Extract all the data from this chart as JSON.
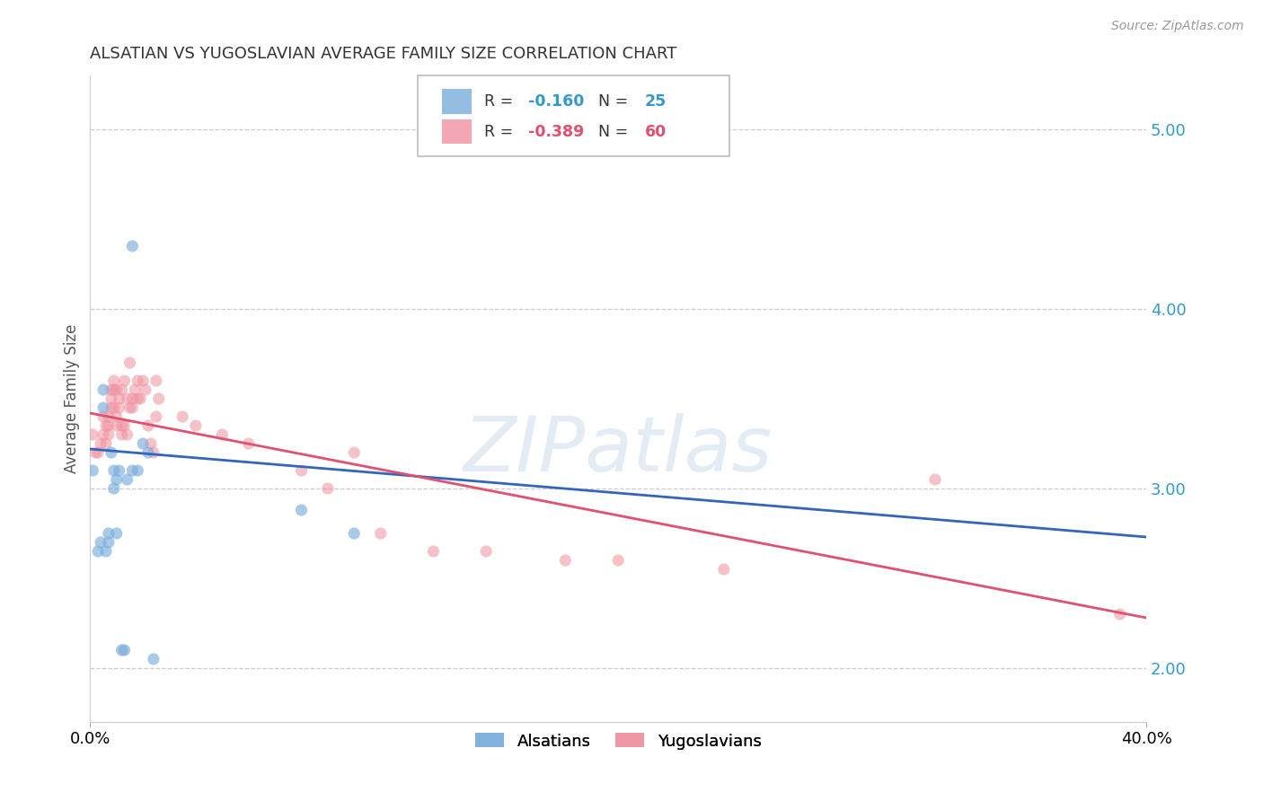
{
  "title": "ALSATIAN VS YUGOSLAVIAN AVERAGE FAMILY SIZE CORRELATION CHART",
  "source": "Source: ZipAtlas.com",
  "ylabel": "Average Family Size",
  "yticks_right": [
    2.0,
    3.0,
    4.0,
    5.0
  ],
  "watermark": "ZIPatlas",
  "alsatians_scatter": {
    "x": [
      0.001,
      0.003,
      0.004,
      0.005,
      0.005,
      0.006,
      0.007,
      0.007,
      0.008,
      0.009,
      0.009,
      0.01,
      0.01,
      0.011,
      0.012,
      0.013,
      0.014,
      0.016,
      0.016,
      0.018,
      0.02,
      0.022,
      0.024,
      0.08,
      0.1
    ],
    "y": [
      3.1,
      2.65,
      2.7,
      3.55,
      3.45,
      2.65,
      2.7,
      2.75,
      3.2,
      3.0,
      3.1,
      2.75,
      3.05,
      3.1,
      2.1,
      2.1,
      3.05,
      4.35,
      3.1,
      3.1,
      3.25,
      3.2,
      2.05,
      2.88,
      2.75
    ]
  },
  "yugoslavians_scatter": {
    "x": [
      0.001,
      0.002,
      0.003,
      0.004,
      0.005,
      0.005,
      0.006,
      0.006,
      0.007,
      0.007,
      0.007,
      0.008,
      0.008,
      0.008,
      0.009,
      0.009,
      0.009,
      0.01,
      0.01,
      0.01,
      0.011,
      0.011,
      0.012,
      0.012,
      0.012,
      0.013,
      0.013,
      0.014,
      0.014,
      0.015,
      0.015,
      0.016,
      0.016,
      0.017,
      0.018,
      0.018,
      0.019,
      0.02,
      0.021,
      0.022,
      0.023,
      0.024,
      0.025,
      0.025,
      0.026,
      0.035,
      0.04,
      0.05,
      0.06,
      0.08,
      0.09,
      0.1,
      0.11,
      0.13,
      0.15,
      0.18,
      0.2,
      0.24,
      0.32,
      0.39
    ],
    "y": [
      3.3,
      3.2,
      3.2,
      3.25,
      3.4,
      3.3,
      3.35,
      3.25,
      3.4,
      3.3,
      3.35,
      3.45,
      3.5,
      3.55,
      3.6,
      3.55,
      3.45,
      3.4,
      3.35,
      3.55,
      3.5,
      3.45,
      3.35,
      3.3,
      3.55,
      3.35,
      3.6,
      3.3,
      3.5,
      3.7,
      3.45,
      3.5,
      3.45,
      3.55,
      3.6,
      3.5,
      3.5,
      3.6,
      3.55,
      3.35,
      3.25,
      3.2,
      3.6,
      3.4,
      3.5,
      3.4,
      3.35,
      3.3,
      3.25,
      3.1,
      3.0,
      3.2,
      2.75,
      2.65,
      2.65,
      2.6,
      2.6,
      2.55,
      3.05,
      2.3
    ]
  },
  "alsatian_line_x": [
    0.0,
    0.4
  ],
  "alsatian_line_y": [
    3.22,
    2.73
  ],
  "yugoslavian_line_x": [
    0.0,
    0.4
  ],
  "yugoslavian_line_y": [
    3.42,
    2.28
  ],
  "alsatian_color": "#7aaddb",
  "yugoslavian_color": "#f090a0",
  "alsatian_line_color": "#3366bb",
  "yugoslavian_line_color": "#e05070",
  "xlim": [
    0.0,
    0.4
  ],
  "ylim": [
    1.7,
    5.3
  ],
  "background_color": "#ffffff",
  "grid_color": "#cccccc",
  "title_fontsize": 13,
  "source_fontsize": 10,
  "legend_fontsize": 12,
  "legend_R_color_blue": "#3399cc",
  "legend_R_color_pink": "#e05070",
  "legend_R1": "-0.160",
  "legend_N1": "25",
  "legend_R2": "-0.389",
  "legend_N2": "60"
}
